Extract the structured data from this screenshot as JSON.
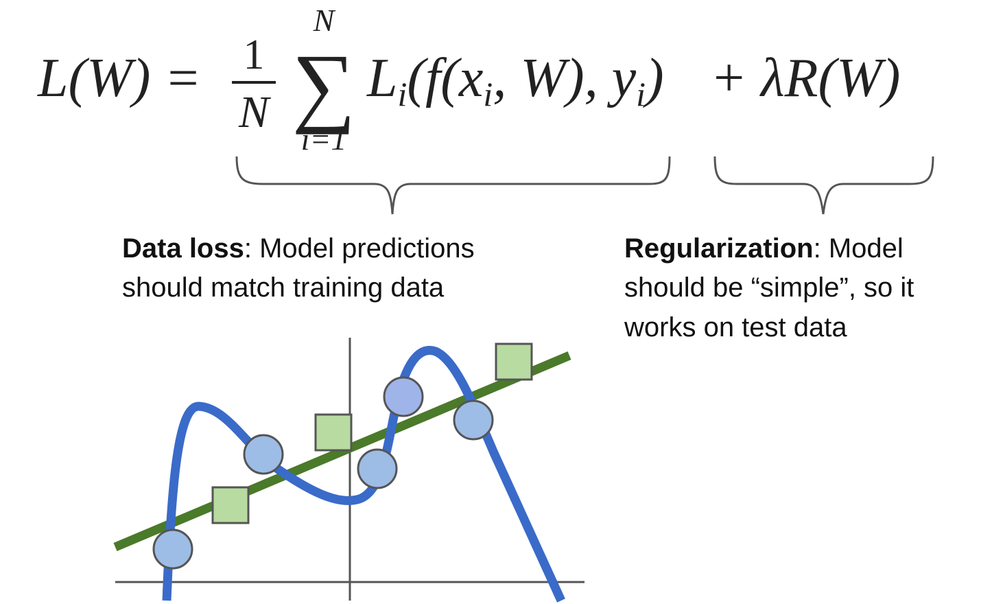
{
  "formula": {
    "lhs": "L(W) =",
    "frac_num": "1",
    "frac_den": "N",
    "sum_top": "N",
    "sum_symbol": "∑",
    "sum_bottom": "i=1",
    "term": [
      "L",
      "i",
      "(f(x",
      "i",
      ", W), y",
      "i",
      ")"
    ],
    "reg": "+ λR(W)"
  },
  "data_loss": {
    "bold": "Data loss",
    "rest": ": Model predictions",
    "line2": "should match training data"
  },
  "regularization": {
    "bold": "Regularization",
    "rest": ": Model",
    "line2": "should be “simple”, so it",
    "line3": "works on test data"
  }
}
